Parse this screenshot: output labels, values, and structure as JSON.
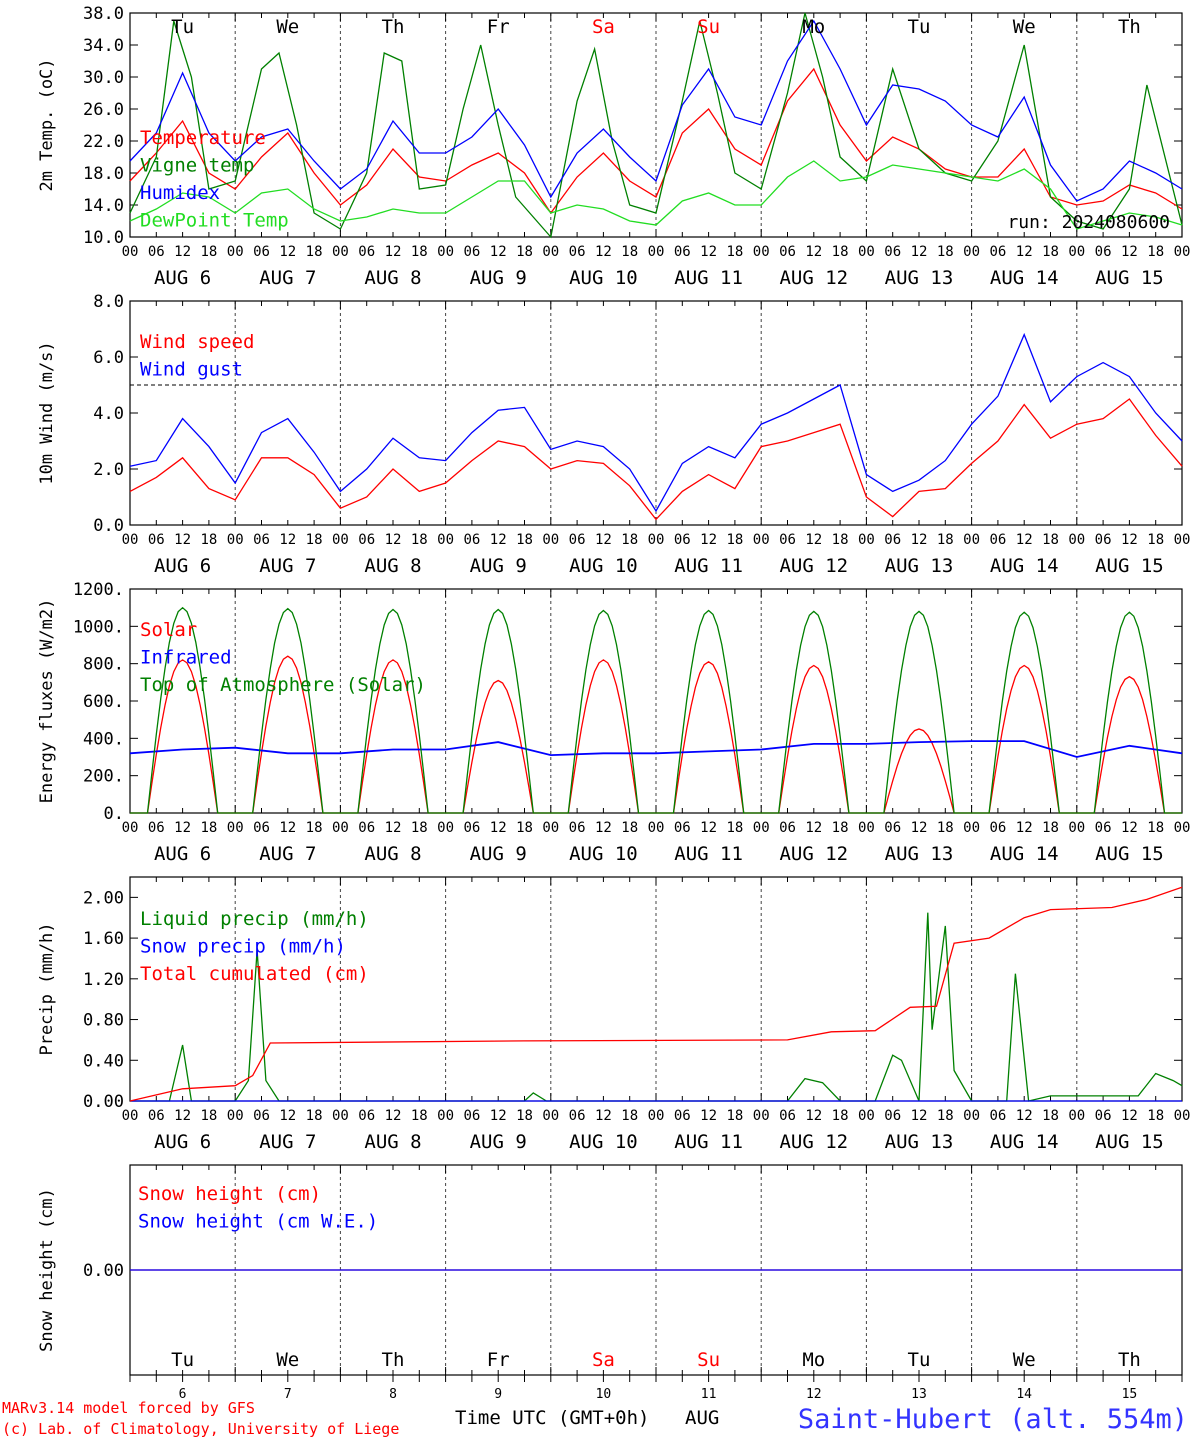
{
  "colors": {
    "red": "#ff0000",
    "blue": "#0000ff",
    "green": "#008000",
    "lime": "#22dd22",
    "purple": "#8a2be2",
    "black": "#000000"
  },
  "day_labels": [
    "Tu",
    "We",
    "Th",
    "Fr",
    "Sa",
    "Su",
    "Mo",
    "Tu",
    "We",
    "Th"
  ],
  "weekend_days": [
    4,
    5
  ],
  "date_labels": [
    "AUG  6",
    "AUG  7",
    "AUG  8",
    "AUG  9",
    "AUG 10",
    "AUG 11",
    "AUG 12",
    "AUG 13",
    "AUG 14",
    "AUG 15"
  ],
  "hour_ticks": [
    "00",
    "06",
    "12",
    "18"
  ],
  "bottom_day_numbers": [
    "6",
    "7",
    "8",
    "9",
    "10",
    "11",
    "12",
    "13",
    "14",
    "15"
  ],
  "footer": {
    "model": "MARv3.14 model forced by GFS",
    "credit": "(c) Lab. of Climatology, University of Liege",
    "time_axis": "Time UTC (GMT+0h)",
    "month": "AUG",
    "station": "Saint-Hubert (alt. 554m)"
  },
  "chart_data": [
    {
      "type": "line",
      "ylabel": "2m Temp. (oC)",
      "ylim": [
        10.0,
        38.0
      ],
      "yticks": [
        "10.0",
        "14.0",
        "18.0",
        "22.0",
        "26.0",
        "30.0",
        "34.0",
        "38.0"
      ],
      "annotation": "run: 2024080600",
      "x_unit": "hours since AUG 6 00 UTC",
      "series": [
        {
          "name": "Temperature",
          "color": "red",
          "x": [
            0,
            6,
            12,
            18,
            24,
            30,
            36,
            42,
            48,
            54,
            60,
            66,
            72,
            78,
            84,
            90,
            96,
            102,
            108,
            114,
            120,
            126,
            132,
            138,
            144,
            150,
            156,
            162,
            168,
            174,
            180,
            186,
            192,
            198,
            204,
            210,
            216,
            222,
            228,
            234,
            240
          ],
          "y": [
            17.0,
            20.5,
            24.5,
            18.0,
            16.0,
            20.0,
            23.0,
            18.0,
            14.0,
            16.5,
            21.0,
            17.5,
            17.0,
            19.0,
            20.5,
            18.0,
            13.0,
            17.5,
            20.5,
            17.0,
            15.0,
            23.0,
            26.0,
            21.0,
            19.0,
            27.0,
            31.0,
            24.0,
            19.5,
            22.5,
            21.0,
            18.5,
            17.5,
            17.5,
            21.0,
            15.0,
            14.0,
            14.5,
            16.5,
            15.5,
            13.5
          ]
        },
        {
          "name": "Vigne temp",
          "color": "green",
          "x": [
            0,
            6,
            10,
            14,
            18,
            24,
            30,
            34,
            38,
            42,
            48,
            54,
            58,
            62,
            66,
            72,
            76,
            80,
            84,
            88,
            96,
            102,
            106,
            110,
            114,
            120,
            126,
            130,
            134,
            138,
            144,
            150,
            154,
            158,
            162,
            168,
            174,
            180,
            186,
            192,
            198,
            204,
            210,
            216,
            222,
            228,
            232,
            240
          ],
          "y": [
            13.0,
            20.0,
            37.0,
            30.0,
            16.0,
            17.0,
            31.0,
            33.0,
            24.0,
            13.0,
            11.0,
            18.0,
            33.0,
            32.0,
            16.0,
            16.5,
            26.0,
            34.0,
            24.0,
            15.0,
            10.0,
            27.0,
            33.5,
            22.0,
            14.0,
            13.0,
            27.0,
            37.0,
            28.0,
            18.0,
            16.0,
            28.0,
            38.0,
            30.0,
            20.0,
            17.0,
            31.0,
            21.0,
            18.0,
            17.0,
            22.0,
            34.0,
            15.0,
            12.0,
            11.0,
            16.0,
            29.0,
            11.5
          ]
        },
        {
          "name": "Humidex",
          "color": "blue",
          "x": [
            0,
            6,
            12,
            18,
            24,
            30,
            36,
            42,
            48,
            54,
            60,
            66,
            72,
            78,
            84,
            90,
            96,
            102,
            108,
            114,
            120,
            126,
            132,
            138,
            144,
            150,
            156,
            162,
            168,
            174,
            180,
            186,
            192,
            198,
            204,
            210,
            216,
            222,
            228,
            234,
            240
          ],
          "y": [
            19.5,
            23.0,
            30.5,
            23.0,
            19.5,
            22.5,
            23.5,
            19.5,
            16.0,
            18.5,
            24.5,
            20.5,
            20.5,
            22.5,
            26.0,
            21.5,
            15.0,
            20.5,
            23.5,
            20.0,
            17.0,
            26.5,
            31.0,
            25.0,
            24.0,
            32.0,
            37.0,
            31.0,
            24.0,
            29.0,
            28.5,
            27.0,
            24.0,
            22.5,
            27.5,
            19.0,
            14.5,
            16.0,
            19.5,
            18.0,
            16.0
          ]
        },
        {
          "name": "DewPoint Temp",
          "color": "lime",
          "x": [
            0,
            6,
            12,
            18,
            24,
            30,
            36,
            42,
            48,
            54,
            60,
            66,
            72,
            78,
            84,
            90,
            96,
            102,
            108,
            114,
            120,
            126,
            132,
            138,
            144,
            150,
            156,
            162,
            168,
            174,
            180,
            186,
            192,
            198,
            204,
            210,
            216,
            222,
            228,
            234,
            240
          ],
          "y": [
            12.0,
            13.5,
            15.5,
            15.0,
            13.0,
            15.5,
            16.0,
            13.5,
            12.0,
            12.5,
            13.5,
            13.0,
            13.0,
            15.0,
            17.0,
            17.0,
            13.0,
            14.0,
            13.5,
            12.0,
            11.5,
            14.5,
            15.5,
            14.0,
            14.0,
            17.5,
            19.5,
            17.0,
            17.5,
            19.0,
            18.5,
            18.0,
            17.5,
            17.0,
            18.5,
            16.0,
            11.0,
            12.0,
            13.0,
            12.5,
            11.5
          ]
        }
      ]
    },
    {
      "type": "line",
      "ylabel": "10m Wind (m/s)",
      "ylim": [
        0.0,
        8.0
      ],
      "yticks": [
        "0.0",
        "2.0",
        "4.0",
        "6.0",
        "8.0"
      ],
      "reference_line": 5.0,
      "x_unit": "hours since AUG 6 00 UTC",
      "series": [
        {
          "name": "Wind speed",
          "color": "red",
          "x": [
            0,
            6,
            12,
            18,
            24,
            30,
            36,
            42,
            48,
            54,
            60,
            66,
            72,
            78,
            84,
            90,
            96,
            102,
            108,
            114,
            120,
            126,
            132,
            138,
            144,
            150,
            156,
            162,
            168,
            174,
            180,
            186,
            192,
            198,
            204,
            210,
            216,
            222,
            228,
            234,
            240
          ],
          "y": [
            1.2,
            1.7,
            2.4,
            1.3,
            0.9,
            2.4,
            2.4,
            1.8,
            0.6,
            1.0,
            2.0,
            1.2,
            1.5,
            2.3,
            3.0,
            2.8,
            2.0,
            2.3,
            2.2,
            1.4,
            0.2,
            1.2,
            1.8,
            1.3,
            2.8,
            3.0,
            3.3,
            3.6,
            1.0,
            0.3,
            1.2,
            1.3,
            2.2,
            3.0,
            4.3,
            3.1,
            3.6,
            3.8,
            4.5,
            3.2,
            2.1
          ]
        },
        {
          "name": "Wind gust",
          "color": "blue",
          "x": [
            0,
            6,
            12,
            18,
            24,
            30,
            36,
            42,
            48,
            54,
            60,
            66,
            72,
            78,
            84,
            90,
            96,
            102,
            108,
            114,
            120,
            126,
            132,
            138,
            144,
            150,
            156,
            162,
            168,
            174,
            180,
            186,
            192,
            198,
            204,
            210,
            216,
            222,
            228,
            234,
            240
          ],
          "y": [
            2.1,
            2.3,
            3.8,
            2.8,
            1.5,
            3.3,
            3.8,
            2.6,
            1.2,
            2.0,
            3.1,
            2.4,
            2.3,
            3.3,
            4.1,
            4.2,
            2.7,
            3.0,
            2.8,
            2.0,
            0.5,
            2.2,
            2.8,
            2.4,
            3.6,
            4.0,
            4.5,
            5.0,
            1.8,
            1.2,
            1.6,
            2.3,
            3.6,
            4.6,
            6.8,
            4.4,
            5.3,
            5.8,
            5.3,
            4.0,
            3.0
          ]
        }
      ]
    },
    {
      "type": "line",
      "ylabel": "Energy fluxes (W/m2)",
      "ylim": [
        0,
        1200
      ],
      "yticks": [
        "0.",
        "200.",
        "400.",
        "600.",
        "800.",
        "1000.",
        "1200."
      ],
      "x_unit": "hours since AUG 6 00 UTC",
      "series": [
        {
          "name": "Solar",
          "color": "red",
          "daily_peaks": [
            820,
            840,
            820,
            710,
            820,
            810,
            790,
            450,
            790,
            730
          ],
          "sunrise_hour": 4,
          "sunset_hour": 20
        },
        {
          "name": "Infrared",
          "color": "blue",
          "x": [
            0,
            12,
            24,
            36,
            48,
            60,
            72,
            84,
            96,
            108,
            120,
            132,
            144,
            156,
            168,
            180,
            192,
            204,
            216,
            228,
            240
          ],
          "y": [
            320,
            340,
            350,
            320,
            320,
            340,
            340,
            380,
            310,
            320,
            320,
            330,
            340,
            370,
            370,
            380,
            385,
            385,
            300,
            360,
            320
          ]
        },
        {
          "name": "Top of Atmosphere (Solar)",
          "color": "green",
          "daily_peaks": [
            1100,
            1095,
            1090,
            1090,
            1085,
            1085,
            1080,
            1080,
            1075,
            1075
          ],
          "sunrise_hour": 4,
          "sunset_hour": 20
        }
      ]
    },
    {
      "type": "line",
      "ylabel": "Precip (mm/h)",
      "ylim": [
        0.0,
        2.2
      ],
      "yticks": [
        "0.00",
        "0.40",
        "0.80",
        "1.20",
        "1.60",
        "2.00"
      ],
      "x_unit": "hours since AUG 6 00 UTC",
      "series": [
        {
          "name": "Liquid precip (mm/h)",
          "color": "green",
          "x": [
            0,
            9,
            12,
            14,
            18,
            24,
            27,
            29,
            31,
            34,
            40,
            90,
            92,
            95,
            150,
            154,
            158,
            162,
            170,
            174,
            176,
            180,
            182,
            183,
            186,
            188,
            192,
            200,
            202,
            205,
            210,
            230,
            234,
            238,
            240
          ],
          "y": [
            0,
            0,
            0.55,
            0,
            0,
            0,
            0.2,
            1.48,
            0.2,
            0,
            0,
            0,
            0.08,
            0,
            0,
            0.22,
            0.18,
            0,
            0,
            0.45,
            0.4,
            0,
            1.85,
            0.7,
            1.72,
            0.3,
            0,
            0,
            1.25,
            0,
            0.05,
            0.05,
            0.27,
            0.2,
            0.15
          ]
        },
        {
          "name": "Snow precip (mm/h)",
          "color": "blue",
          "x": [
            0,
            240
          ],
          "y": [
            0,
            0
          ]
        },
        {
          "name": "Total cumulated (cm)",
          "color": "red",
          "x": [
            0,
            12,
            24,
            28,
            32,
            90,
            150,
            160,
            170,
            178,
            184,
            188,
            196,
            204,
            210,
            224,
            232,
            240
          ],
          "y": [
            0,
            0.12,
            0.15,
            0.25,
            0.57,
            0.59,
            0.6,
            0.68,
            0.69,
            0.92,
            0.93,
            1.55,
            1.6,
            1.8,
            1.88,
            1.9,
            1.98,
            2.1
          ]
        }
      ]
    },
    {
      "type": "line",
      "ylabel": "Snow height (cm)",
      "ylim": [
        -1.0,
        1.0
      ],
      "yticks": [
        "0.00"
      ],
      "x_unit": "hours since AUG 6 00 UTC",
      "series": [
        {
          "name": "Snow height (cm)",
          "color": "red",
          "x": [
            0,
            240
          ],
          "y": [
            0,
            0
          ]
        },
        {
          "name": "Snow height (cm W.E.)",
          "color": "blue",
          "x": [
            0,
            240
          ],
          "y": [
            0,
            0
          ]
        }
      ]
    }
  ]
}
